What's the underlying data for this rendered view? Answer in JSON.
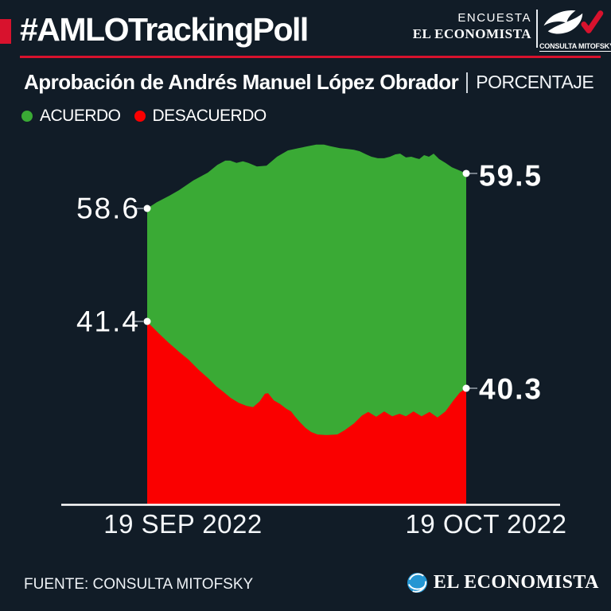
{
  "header": {
    "hashtag_title": "#AMLOTrackingPoll",
    "encuesta_label": "ENCUESTA",
    "economista_masthead": "EL ECONOMISTA",
    "mitofsky_label": "CONSULTA MITOFSKY"
  },
  "subtitle": {
    "title": "Aprobación de Andrés Manuel López Obrador",
    "unit_label": "PORCENTAJE"
  },
  "legend": [
    {
      "label": "ACUERDO",
      "color": "#3aaa35"
    },
    {
      "label": "DESACUERDO",
      "color": "#fa0000"
    }
  ],
  "chart_data": {
    "type": "area",
    "title": "Aprobación de Andrés Manuel López Obrador",
    "unit": "PORCENTAJE",
    "x_axis": {
      "start_label": "19 SEP 2022",
      "end_label": "19 OCT 2022"
    },
    "series": [
      {
        "name": "ACUERDO",
        "color": "#3aaa35",
        "start_value": 58.6,
        "end_value": 59.5,
        "points": [
          [
            0,
            58.6
          ],
          [
            0.03,
            58.76
          ],
          [
            0.07,
            58.93
          ],
          [
            0.1,
            59.07
          ],
          [
            0.145,
            59.32
          ],
          [
            0.19,
            59.52
          ],
          [
            0.22,
            59.72
          ],
          [
            0.245,
            59.83
          ],
          [
            0.26,
            59.83
          ],
          [
            0.28,
            59.77
          ],
          [
            0.3,
            59.81
          ],
          [
            0.317,
            59.77
          ],
          [
            0.344,
            59.68
          ],
          [
            0.374,
            59.7
          ],
          [
            0.407,
            59.93
          ],
          [
            0.441,
            60.09
          ],
          [
            0.474,
            60.15
          ],
          [
            0.504,
            60.2
          ],
          [
            0.53,
            60.24
          ],
          [
            0.554,
            60.24
          ],
          [
            0.574,
            60.2
          ],
          [
            0.604,
            60.15
          ],
          [
            0.628,
            60.13
          ],
          [
            0.648,
            60.11
          ],
          [
            0.666,
            60.07
          ],
          [
            0.686,
            59.99
          ],
          [
            0.703,
            59.93
          ],
          [
            0.723,
            59.89
          ],
          [
            0.743,
            59.89
          ],
          [
            0.761,
            59.93
          ],
          [
            0.778,
            59.99
          ],
          [
            0.793,
            60.01
          ],
          [
            0.811,
            59.91
          ],
          [
            0.828,
            59.93
          ],
          [
            0.843,
            59.89
          ],
          [
            0.853,
            59.87
          ],
          [
            0.868,
            59.97
          ],
          [
            0.883,
            59.93
          ],
          [
            0.898,
            60.01
          ],
          [
            0.915,
            59.87
          ],
          [
            0.935,
            59.77
          ],
          [
            0.955,
            59.66
          ],
          [
            0.978,
            59.58
          ],
          [
            1,
            59.5
          ]
        ]
      },
      {
        "name": "DESACUERDO",
        "color": "#fa0000",
        "start_value": 41.4,
        "end_value": 40.3,
        "points": [
          [
            0,
            41.4
          ],
          [
            0.012,
            41.33
          ],
          [
            0.037,
            41.2
          ],
          [
            0.067,
            41.05
          ],
          [
            0.1,
            40.9
          ],
          [
            0.13,
            40.77
          ],
          [
            0.162,
            40.6
          ],
          [
            0.192,
            40.46
          ],
          [
            0.217,
            40.33
          ],
          [
            0.237,
            40.25
          ],
          [
            0.262,
            40.14
          ],
          [
            0.287,
            40.06
          ],
          [
            0.312,
            40.01
          ],
          [
            0.332,
            39.99
          ],
          [
            0.352,
            40.08
          ],
          [
            0.369,
            40.21
          ],
          [
            0.379,
            40.22
          ],
          [
            0.397,
            40.1
          ],
          [
            0.417,
            40.04
          ],
          [
            0.437,
            39.96
          ],
          [
            0.451,
            39.92
          ],
          [
            0.464,
            39.83
          ],
          [
            0.479,
            39.74
          ],
          [
            0.496,
            39.65
          ],
          [
            0.514,
            39.58
          ],
          [
            0.534,
            39.54
          ],
          [
            0.561,
            39.53
          ],
          [
            0.596,
            39.54
          ],
          [
            0.619,
            39.61
          ],
          [
            0.648,
            39.72
          ],
          [
            0.673,
            39.85
          ],
          [
            0.693,
            39.91
          ],
          [
            0.718,
            39.83
          ],
          [
            0.743,
            39.92
          ],
          [
            0.768,
            39.84
          ],
          [
            0.791,
            39.88
          ],
          [
            0.811,
            39.84
          ],
          [
            0.835,
            39.92
          ],
          [
            0.86,
            39.84
          ],
          [
            0.885,
            39.91
          ],
          [
            0.91,
            39.82
          ],
          [
            0.935,
            39.92
          ],
          [
            0.96,
            40.1
          ],
          [
            0.98,
            40.23
          ],
          [
            1,
            40.3
          ]
        ]
      }
    ]
  },
  "footer": {
    "source": "FUENTE: CONSULTA MITOFSKY",
    "brand": "EL ECONOMISTA"
  },
  "icons": {
    "mitofsky_logo": "bird-checkmark-icon",
    "economista_globe": "globe-e-icon"
  },
  "colors": {
    "background": "#111c27",
    "accent_red": "#d8122d",
    "area_green": "#3aaa35",
    "area_red": "#fa0000",
    "text": "#ffffff"
  }
}
